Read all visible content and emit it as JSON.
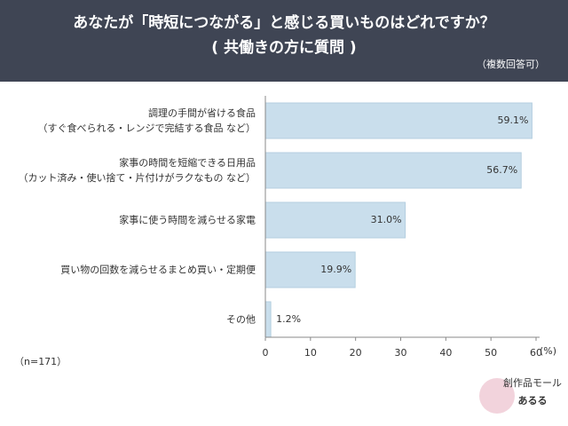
{
  "header": {
    "title": "あなたが「時短につながる」と感じる買いものはどれですか？\n( 共働きの方に質問 )",
    "note": "（複数回答可）"
  },
  "chart_data": {
    "type": "hbar",
    "categories": [
      "調理の手間が省ける食品\n（すぐ食べられる・レンジで完結する食品 など）",
      "家事の時間を短縮できる日用品\n（カット済み・使い捨て・片付けがラクなもの など）",
      "家事に使う時間を減らせる家電",
      "買い物の回数を減らせるまとめ買い・定期便",
      "その他"
    ],
    "values": [
      59.1,
      56.7,
      31.0,
      19.9,
      1.2
    ],
    "value_labels": [
      "59.1%",
      "56.7%",
      "31.0%",
      "19.9%",
      "1.2%"
    ],
    "color": "#c9deec",
    "xlim": [
      0,
      60
    ],
    "xticks": [
      0,
      10,
      20,
      30,
      40,
      50,
      60
    ],
    "x_unit": "(%)",
    "sample_note": "（n=171）"
  },
  "logo": {
    "subtitle": "創作品モール",
    "name": "あるる"
  }
}
